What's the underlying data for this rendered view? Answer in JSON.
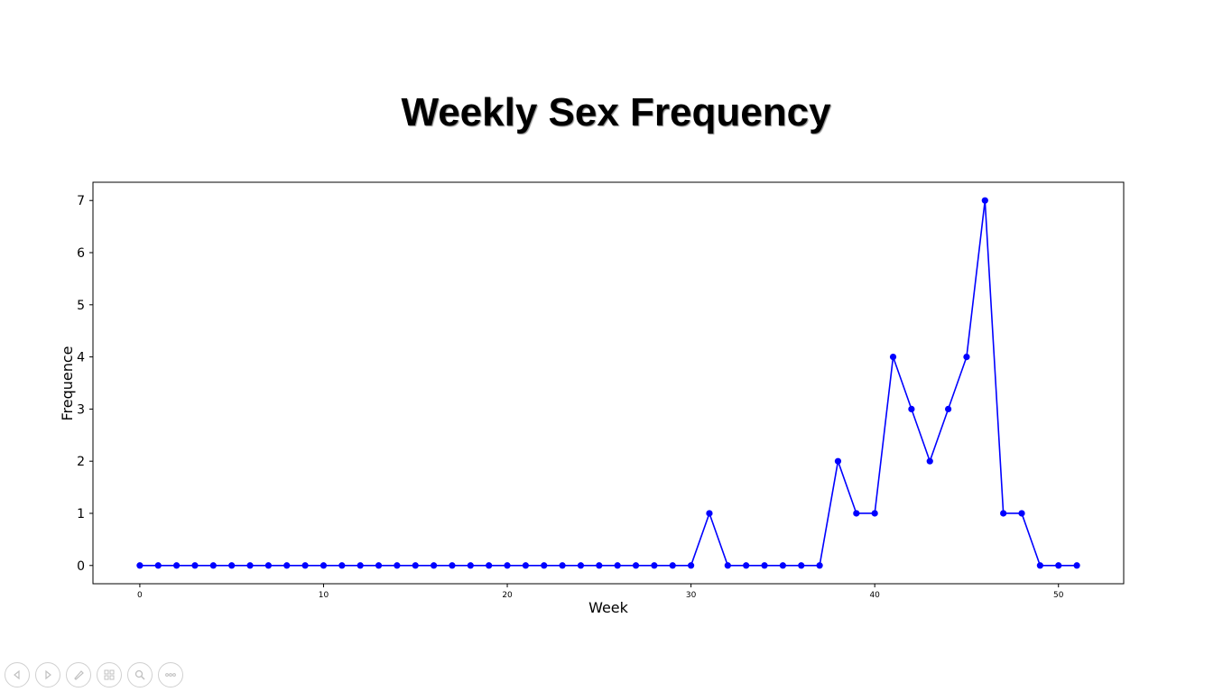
{
  "slide": {
    "title": "Weekly Sex Frequency"
  },
  "chart_data": {
    "type": "line",
    "title": "Weekly Sex Frequency",
    "xlabel": "Week",
    "ylabel": "Frequence",
    "xlim": [
      -2.55,
      53.55
    ],
    "ylim": [
      -0.35,
      7.35
    ],
    "xticks": [
      0,
      10,
      20,
      30,
      40,
      50
    ],
    "yticks": [
      0,
      1,
      2,
      3,
      4,
      5,
      6,
      7
    ],
    "grid": false,
    "legend": "none",
    "series": [
      {
        "color": "#0000ff",
        "marker": "circle",
        "x": [
          0,
          1,
          2,
          3,
          4,
          5,
          6,
          7,
          8,
          9,
          10,
          11,
          12,
          13,
          14,
          15,
          16,
          17,
          18,
          19,
          20,
          21,
          22,
          23,
          24,
          25,
          26,
          27,
          28,
          29,
          30,
          31,
          32,
          33,
          34,
          35,
          36,
          37,
          38,
          39,
          40,
          41,
          42,
          43,
          44,
          45,
          46,
          47,
          48,
          49,
          50,
          51
        ],
        "values": [
          0,
          0,
          0,
          0,
          0,
          0,
          0,
          0,
          0,
          0,
          0,
          0,
          0,
          0,
          0,
          0,
          0,
          0,
          0,
          0,
          0,
          0,
          0,
          0,
          0,
          0,
          0,
          0,
          0,
          0,
          0,
          1,
          0,
          0,
          0,
          0,
          0,
          0,
          2,
          1,
          1,
          4,
          3,
          2,
          3,
          4,
          7,
          1,
          1,
          0,
          0,
          0
        ]
      }
    ]
  },
  "controls": {
    "items": [
      {
        "name": "previous-slide-button",
        "icon": "arrow-left-icon"
      },
      {
        "name": "next-slide-button",
        "icon": "arrow-right-icon"
      },
      {
        "name": "pen-tool-button",
        "icon": "pen-icon"
      },
      {
        "name": "see-all-slides-button",
        "icon": "slides-grid-icon"
      },
      {
        "name": "zoom-button",
        "icon": "magnifier-icon"
      },
      {
        "name": "more-options-button",
        "icon": "ellipsis-icon"
      }
    ]
  }
}
